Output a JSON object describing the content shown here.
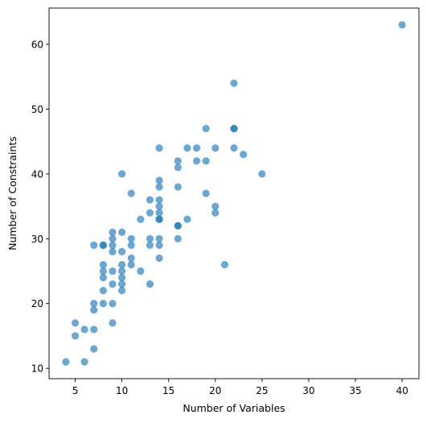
{
  "chart_data": {
    "type": "scatter",
    "title": "",
    "xlabel": "Number of Variables",
    "ylabel": "Number of Constraints",
    "xlim": [
      2.2,
      41.8
    ],
    "ylim": [
      8.4,
      65.6
    ],
    "xticks": [
      5,
      10,
      15,
      20,
      25,
      30,
      35,
      40
    ],
    "yticks": [
      10,
      20,
      30,
      40,
      50,
      60
    ],
    "grid": false,
    "legend": "none",
    "marker_color": "#1f77b4",
    "marker_alpha": 0.65,
    "series": [
      {
        "points": [
          [
            4,
            11
          ],
          [
            5,
            15
          ],
          [
            5,
            17
          ],
          [
            6,
            11
          ],
          [
            6,
            16
          ],
          [
            7,
            13
          ],
          [
            7,
            16
          ],
          [
            7,
            19
          ],
          [
            7,
            20
          ],
          [
            7,
            29
          ],
          [
            8,
            20
          ],
          [
            8,
            22
          ],
          [
            8,
            24
          ],
          [
            8,
            25
          ],
          [
            8,
            26
          ],
          [
            8,
            29
          ],
          [
            8,
            29
          ],
          [
            9,
            17
          ],
          [
            9,
            20
          ],
          [
            9,
            23
          ],
          [
            9,
            25
          ],
          [
            9,
            28
          ],
          [
            9,
            29
          ],
          [
            9,
            30
          ],
          [
            9,
            31
          ],
          [
            10,
            22
          ],
          [
            10,
            23
          ],
          [
            10,
            24
          ],
          [
            10,
            25
          ],
          [
            10,
            26
          ],
          [
            10,
            28
          ],
          [
            10,
            31
          ],
          [
            10,
            40
          ],
          [
            11,
            26
          ],
          [
            11,
            27
          ],
          [
            11,
            29
          ],
          [
            11,
            30
          ],
          [
            11,
            37
          ],
          [
            12,
            25
          ],
          [
            12,
            33
          ],
          [
            13,
            23
          ],
          [
            13,
            29
          ],
          [
            13,
            30
          ],
          [
            13,
            34
          ],
          [
            13,
            36
          ],
          [
            14,
            27
          ],
          [
            14,
            29
          ],
          [
            14,
            30
          ],
          [
            14,
            33
          ],
          [
            14,
            33
          ],
          [
            14,
            34
          ],
          [
            14,
            35
          ],
          [
            14,
            36
          ],
          [
            14,
            38
          ],
          [
            14,
            39
          ],
          [
            14,
            44
          ],
          [
            16,
            30
          ],
          [
            16,
            32
          ],
          [
            16,
            32
          ],
          [
            16,
            38
          ],
          [
            16,
            41
          ],
          [
            16,
            42
          ],
          [
            17,
            33
          ],
          [
            17,
            44
          ],
          [
            18,
            42
          ],
          [
            18,
            44
          ],
          [
            19,
            37
          ],
          [
            19,
            42
          ],
          [
            19,
            47
          ],
          [
            20,
            34
          ],
          [
            20,
            35
          ],
          [
            20,
            44
          ],
          [
            21,
            26
          ],
          [
            22,
            44
          ],
          [
            22,
            47
          ],
          [
            22,
            47
          ],
          [
            22,
            54
          ],
          [
            23,
            43
          ],
          [
            25,
            40
          ],
          [
            40,
            63
          ]
        ]
      }
    ]
  }
}
